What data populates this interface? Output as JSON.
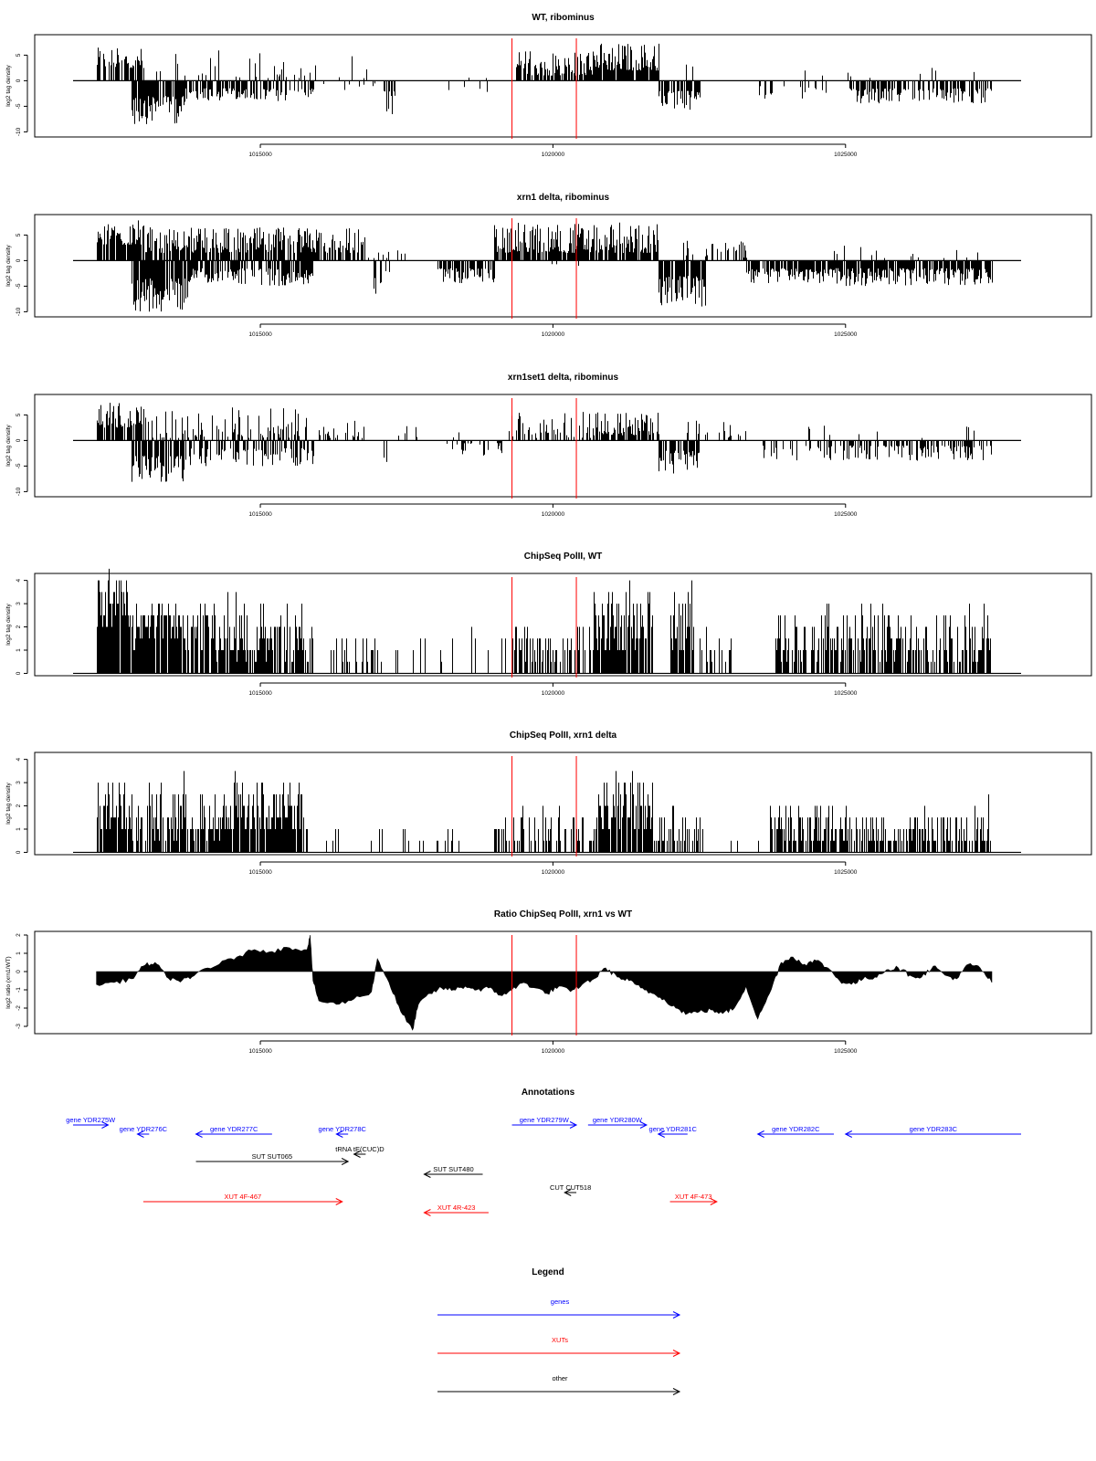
{
  "colors": {
    "red_marker": "#ff0000",
    "genes": "#0000ff",
    "xuts": "#ff0000",
    "other": "#000000",
    "bars": "#000000"
  },
  "chart_data": [
    {
      "type": "bar",
      "title": "WT, ribominus",
      "ylabel": "log2 tag density",
      "xlim": [
        1011800,
        1028000
      ],
      "ylim": [
        -11,
        9
      ],
      "yticks": [
        -10,
        -5,
        0,
        5
      ],
      "xticks": [
        1015000,
        1020000,
        1025000
      ],
      "xtick_labels": [
        "1015000",
        "1020000",
        "1025000"
      ],
      "markers": [
        1019300,
        1020400
      ],
      "segments": [
        [
          1012200,
          1013000,
          "pos",
          2.5,
          6.5,
          0.7
        ],
        [
          1012800,
          1013700,
          "neg",
          3,
          8.5,
          0.8
        ],
        [
          1013000,
          1015900,
          "pos",
          0.5,
          6,
          0.15
        ],
        [
          1013700,
          1015900,
          "neg",
          1.5,
          4,
          0.6
        ],
        [
          1015900,
          1016900,
          "pos",
          0.5,
          5,
          0.08
        ],
        [
          1016000,
          1017000,
          "neg",
          0.5,
          2,
          0.05
        ],
        [
          1017100,
          1017300,
          "neg",
          2,
          8.5,
          0.5
        ],
        [
          1018000,
          1018900,
          "neg",
          0.5,
          3,
          0.12
        ],
        [
          1018500,
          1019000,
          "pos",
          0.5,
          4,
          0.06
        ],
        [
          1019300,
          1020700,
          "pos",
          1,
          6,
          0.7
        ],
        [
          1020700,
          1021800,
          "pos",
          2,
          7.5,
          0.9
        ],
        [
          1021800,
          1022500,
          "neg",
          2,
          6,
          0.7
        ],
        [
          1022200,
          1023300,
          "pos",
          0.5,
          4,
          0.08
        ],
        [
          1023500,
          1025000,
          "neg",
          1,
          3.5,
          0.25
        ],
        [
          1025000,
          1027500,
          "neg",
          1.5,
          4.5,
          0.6
        ],
        [
          1024200,
          1027500,
          "pos",
          0.5,
          3,
          0.04
        ]
      ]
    },
    {
      "type": "bar",
      "title": "xrn1 delta, ribominus",
      "ylabel": "log2 tag density",
      "xlim": [
        1011800,
        1028000
      ],
      "ylim": [
        -11,
        9
      ],
      "yticks": [
        -10,
        -5,
        0,
        5
      ],
      "xticks": [
        1015000,
        1020000,
        1025000
      ],
      "xtick_labels": [
        "1015000",
        "1020000",
        "1025000"
      ],
      "markers": [
        1019300,
        1020400
      ],
      "segments": [
        [
          1012200,
          1013000,
          "pos",
          3,
          8,
          0.85
        ],
        [
          1012800,
          1013800,
          "neg",
          3.5,
          10,
          0.85
        ],
        [
          1013000,
          1016800,
          "pos",
          1.5,
          6.5,
          0.8
        ],
        [
          1013800,
          1015900,
          "neg",
          1.5,
          5,
          0.7
        ],
        [
          1016800,
          1017900,
          "pos",
          0.5,
          3,
          0.08
        ],
        [
          1016900,
          1017200,
          "neg",
          2,
          6.5,
          0.4
        ],
        [
          1018000,
          1019000,
          "neg",
          1.5,
          4.5,
          0.7
        ],
        [
          1019000,
          1021800,
          "pos",
          1.5,
          7.5,
          0.85
        ],
        [
          1019000,
          1021000,
          "neg",
          0.5,
          2,
          0.05
        ],
        [
          1021800,
          1022600,
          "neg",
          3,
          9,
          0.85
        ],
        [
          1022200,
          1023300,
          "pos",
          0.5,
          4,
          0.35
        ],
        [
          1023300,
          1025000,
          "neg",
          1.5,
          4.5,
          0.8
        ],
        [
          1025000,
          1027500,
          "neg",
          1.5,
          5,
          0.85
        ],
        [
          1024500,
          1027500,
          "pos",
          0.5,
          3,
          0.05
        ]
      ]
    },
    {
      "type": "bar",
      "title": "xrn1set1 delta, ribominus",
      "ylabel": "log2 tag density",
      "xlim": [
        1011800,
        1028000
      ],
      "ylim": [
        -11,
        9
      ],
      "yticks": [
        -10,
        -5,
        0,
        5
      ],
      "xticks": [
        1015000,
        1020000,
        1025000
      ],
      "xtick_labels": [
        "1015000",
        "1020000",
        "1025000"
      ],
      "markers": [
        1019300,
        1020400
      ],
      "segments": [
        [
          1012200,
          1013000,
          "pos",
          2.5,
          7.5,
          0.75
        ],
        [
          1012800,
          1013700,
          "neg",
          3,
          8.5,
          0.8
        ],
        [
          1013000,
          1015900,
          "pos",
          0.5,
          6.5,
          0.4
        ],
        [
          1013700,
          1015900,
          "neg",
          1.5,
          5,
          0.5
        ],
        [
          1016000,
          1016800,
          "pos",
          0.5,
          4,
          0.4
        ],
        [
          1017100,
          1017300,
          "neg",
          3,
          9.5,
          0.3
        ],
        [
          1017300,
          1018600,
          "pos",
          0.5,
          3,
          0.06
        ],
        [
          1018000,
          1019200,
          "neg",
          0.5,
          3,
          0.25
        ],
        [
          1019200,
          1020700,
          "pos",
          0.5,
          6,
          0.4
        ],
        [
          1020700,
          1021800,
          "pos",
          1,
          5.5,
          0.7
        ],
        [
          1021800,
          1022500,
          "neg",
          2,
          6.5,
          0.6
        ],
        [
          1022200,
          1023300,
          "pos",
          0.5,
          4,
          0.3
        ],
        [
          1023500,
          1025000,
          "neg",
          1,
          4,
          0.3
        ],
        [
          1025000,
          1027500,
          "neg",
          1,
          4,
          0.5
        ],
        [
          1024200,
          1027500,
          "pos",
          0.5,
          3,
          0.05
        ]
      ]
    },
    {
      "type": "bar",
      "title": "ChipSeq PolII, WT",
      "ylabel": "log2 tag density",
      "xlim": [
        1011800,
        1028000
      ],
      "ylim": [
        -0.1,
        4.3
      ],
      "yticks": [
        0,
        1,
        2,
        3,
        4
      ],
      "xticks": [
        1015000,
        1020000,
        1025000
      ],
      "xtick_labels": [
        "1015000",
        "1020000",
        "1025000"
      ],
      "markers": [
        1019300,
        1020400
      ],
      "segments": [
        [
          1012200,
          1012800,
          "pos",
          2,
          4.2,
          0.95
        ],
        [
          1012800,
          1013100,
          "pos",
          1,
          3,
          0.85
        ],
        [
          1013100,
          1013700,
          "pos",
          1.5,
          3.3,
          0.9
        ],
        [
          1013700,
          1015900,
          "pos",
          0.6,
          3,
          0.8
        ],
        [
          1016200,
          1017000,
          "pos",
          0.6,
          1.6,
          0.4
        ],
        [
          1017000,
          1019300,
          "pos",
          0.6,
          1.6,
          0.15
        ],
        [
          1019300,
          1020700,
          "pos",
          0.6,
          2,
          0.6
        ],
        [
          1020700,
          1021700,
          "pos",
          1,
          3.6,
          0.9
        ],
        [
          1022000,
          1022400,
          "pos",
          1,
          3.9,
          0.95
        ],
        [
          1022400,
          1023100,
          "pos",
          0.6,
          1.5,
          0.4
        ],
        [
          1023800,
          1027500,
          "pos",
          0.6,
          2.6,
          0.7
        ]
      ]
    },
    {
      "type": "bar",
      "title": "ChipSeq PolII, xrn1 delta",
      "ylabel": "log2 tag density",
      "xlim": [
        1011800,
        1028000
      ],
      "ylim": [
        -0.1,
        4.3
      ],
      "yticks": [
        0,
        1,
        2,
        3,
        4
      ],
      "xticks": [
        1015000,
        1020000,
        1025000
      ],
      "xtick_labels": [
        "1015000",
        "1020000",
        "1025000"
      ],
      "markers": [
        1019300,
        1020400
      ],
      "segments": [
        [
          1012200,
          1012800,
          "pos",
          1,
          3,
          0.9
        ],
        [
          1012800,
          1013100,
          "pos",
          0.3,
          2,
          0.5
        ],
        [
          1013100,
          1014300,
          "pos",
          0.5,
          2.8,
          0.8
        ],
        [
          1014300,
          1015800,
          "pos",
          0.8,
          2.8,
          0.9
        ],
        [
          1016000,
          1018500,
          "pos",
          0.3,
          0.8,
          0.08
        ],
        [
          1019000,
          1020700,
          "pos",
          0.3,
          1.8,
          0.55
        ],
        [
          1020700,
          1021700,
          "pos",
          0.8,
          3.3,
          0.9
        ],
        [
          1021700,
          1022500,
          "pos",
          0.3,
          1.8,
          0.5
        ],
        [
          1022500,
          1023500,
          "pos",
          0.3,
          0.4,
          0.1
        ],
        [
          1023700,
          1027500,
          "pos",
          0.3,
          1.9,
          0.6
        ]
      ]
    },
    {
      "type": "area",
      "title": "Ratio ChipSeq PolII, xrn1 vs WT",
      "ylabel": "log2 ratio (xrn1/WT)",
      "xlim": [
        1011800,
        1028000
      ],
      "ylim": [
        -3.4,
        2.2
      ],
      "yticks": [
        -3,
        -2,
        -1,
        0,
        1,
        2
      ],
      "xticks": [
        1015000,
        1020000,
        1025000
      ],
      "xtick_labels": [
        "1015000",
        "1020000",
        "1025000"
      ],
      "markers": [
        1019300,
        1020400
      ],
      "x": [
        1012200,
        1012500,
        1012800,
        1013000,
        1013200,
        1013400,
        1013600,
        1013800,
        1014000,
        1014300,
        1014600,
        1014900,
        1015200,
        1015500,
        1015800,
        1015850,
        1015900,
        1016000,
        1016300,
        1016600,
        1016900,
        1017000,
        1017200,
        1017400,
        1017600,
        1017700,
        1017900,
        1018100,
        1018300,
        1018500,
        1018700,
        1018900,
        1019100,
        1019300,
        1019500,
        1019700,
        1019900,
        1020100,
        1020300,
        1020500,
        1020700,
        1020900,
        1021100,
        1021300,
        1021500,
        1021700,
        1021900,
        1022100,
        1022300,
        1022500,
        1022700,
        1022900,
        1023100,
        1023300,
        1023500,
        1023700,
        1023900,
        1024100,
        1024300,
        1024500,
        1024700,
        1024900,
        1025100,
        1025300,
        1025500,
        1025700,
        1025900,
        1026100,
        1026300,
        1026500,
        1026700,
        1026900,
        1027100,
        1027300,
        1027500
      ],
      "y": [
        -0.7,
        -0.6,
        -0.4,
        0.3,
        0.5,
        -0.3,
        -0.5,
        -0.4,
        0.1,
        0.4,
        0.8,
        1.2,
        1.1,
        1.3,
        1.2,
        2.0,
        -0.5,
        -1.6,
        -1.8,
        -1.5,
        -1.1,
        0.7,
        -0.6,
        -2.2,
        -3.2,
        -1.8,
        -1.2,
        -0.9,
        -1.0,
        -0.8,
        -1.0,
        -0.9,
        -1.3,
        -1.0,
        -0.6,
        -0.9,
        -1.2,
        -0.8,
        -1.1,
        -0.7,
        -0.4,
        0.2,
        -0.3,
        -0.5,
        -0.9,
        -1.2,
        -1.5,
        -2.0,
        -2.3,
        -2.2,
        -2.1,
        -2.3,
        -2.0,
        -0.8,
        -2.6,
        -1.2,
        0.5,
        0.8,
        0.4,
        0.6,
        0.2,
        -0.5,
        -0.7,
        -0.4,
        -0.3,
        0.1,
        0.2,
        -0.2,
        -0.3,
        0.3,
        -0.2,
        -0.4,
        0.4,
        0.2,
        -0.6
      ]
    }
  ],
  "annotations": {
    "title": "Annotations",
    "features": [
      {
        "label": "gene YDR275W",
        "type": "gene",
        "dir": 1,
        "start": 1011800,
        "end": 1012400,
        "row": 0
      },
      {
        "label": "gene YDR276C",
        "type": "gene",
        "dir": -1,
        "start": 1012900,
        "end": 1013100,
        "row": 1
      },
      {
        "label": "gene YDR277C",
        "type": "gene",
        "dir": -1,
        "start": 1013900,
        "end": 1015200,
        "row": 1
      },
      {
        "label": "gene YDR278C",
        "type": "gene",
        "dir": -1,
        "start": 1016300,
        "end": 1016500,
        "row": 1
      },
      {
        "label": "tRNA tE(CUC)D",
        "type": "other",
        "dir": -1,
        "start": 1016600,
        "end": 1016800,
        "row": 2
      },
      {
        "label": "SUT SUT065",
        "type": "other",
        "dir": 1,
        "start": 1013900,
        "end": 1016500,
        "row": 3
      },
      {
        "label": "SUT SUT480",
        "type": "other",
        "dir": -1,
        "start": 1017800,
        "end": 1018800,
        "row": 4
      },
      {
        "label": "gene YDR279W",
        "type": "gene",
        "dir": 1,
        "start": 1019300,
        "end": 1020400,
        "row": 0
      },
      {
        "label": "gene YDR280W",
        "type": "gene",
        "dir": 1,
        "start": 1020600,
        "end": 1021600,
        "row": 0
      },
      {
        "label": "gene YDR281C",
        "type": "gene",
        "dir": -1,
        "start": 1021800,
        "end": 1022300,
        "row": 1
      },
      {
        "label": "gene YDR282C",
        "type": "gene",
        "dir": -1,
        "start": 1023500,
        "end": 1024800,
        "row": 1
      },
      {
        "label": "gene YDR283C",
        "type": "gene",
        "dir": -1,
        "start": 1025000,
        "end": 1028000,
        "row": 1
      },
      {
        "label": "CUT CUT518",
        "type": "other",
        "dir": -1,
        "start": 1020200,
        "end": 1020400,
        "row": 5
      },
      {
        "label": "XUT 4F-467",
        "type": "xut",
        "dir": 1,
        "start": 1013000,
        "end": 1016400,
        "row": 6
      },
      {
        "label": "XUT 4R-423",
        "type": "xut",
        "dir": -1,
        "start": 1017800,
        "end": 1018900,
        "row": 7
      },
      {
        "label": "XUT 4F-473",
        "type": "xut",
        "dir": 1,
        "start": 1022000,
        "end": 1022800,
        "row": 6
      }
    ]
  },
  "legend": {
    "title": "Legend",
    "entries": [
      {
        "label": "genes",
        "type": "gene"
      },
      {
        "label": "XUTs",
        "type": "xut"
      },
      {
        "label": "other",
        "type": "other"
      }
    ]
  }
}
